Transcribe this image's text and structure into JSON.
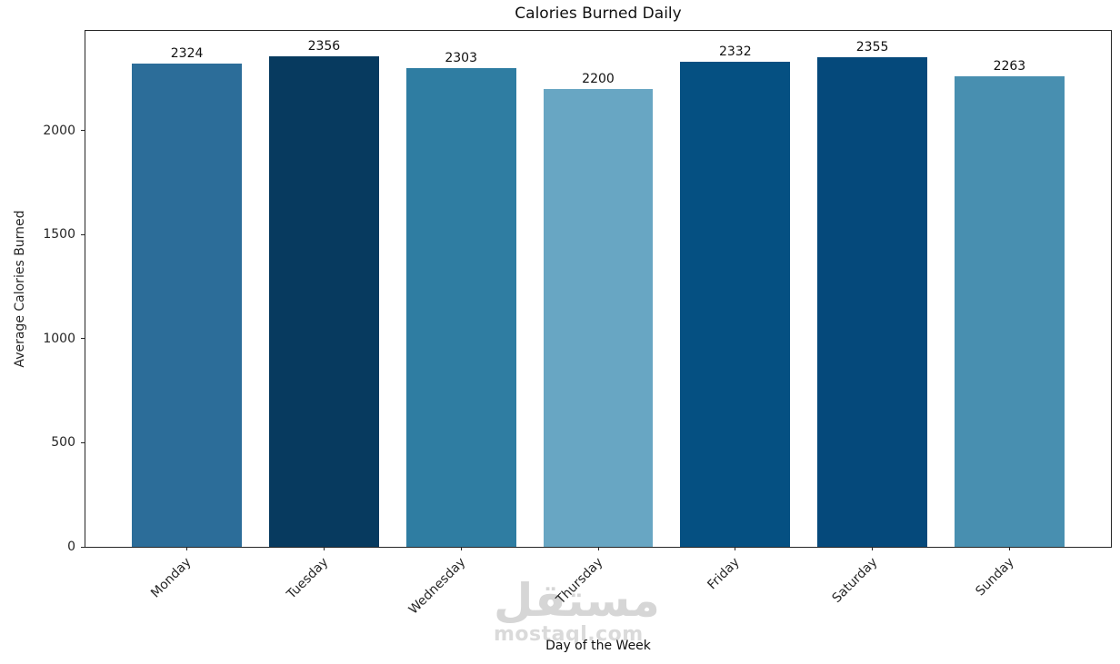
{
  "chart_data": {
    "type": "bar",
    "title": "Calories Burned Daily",
    "xlabel": "Day of the Week",
    "ylabel": "Average Calories Burned",
    "categories": [
      "Monday",
      "Tuesday",
      "Wednesday",
      "Thursday",
      "Friday",
      "Saturday",
      "Sunday"
    ],
    "values": [
      2324,
      2356,
      2303,
      2200,
      2332,
      2355,
      2263
    ],
    "bar_colors": [
      "#2c6d99",
      "#073a5f",
      "#2f7da2",
      "#68a6c3",
      "#055082",
      "#05497b",
      "#488fb0"
    ],
    "yticks": [
      0,
      500,
      1000,
      1500,
      2000
    ],
    "ylim": [
      0,
      2480
    ],
    "grid": false,
    "legend": "none",
    "value_labels_shown": true,
    "x_tick_rotation_deg": 45,
    "bar_slot_units": 7.48,
    "bar_width_units": 0.8,
    "first_bar_offset_units": 0.74
  },
  "watermark": {
    "logo_text": "مستقل",
    "site_text": "mostaql.com"
  }
}
